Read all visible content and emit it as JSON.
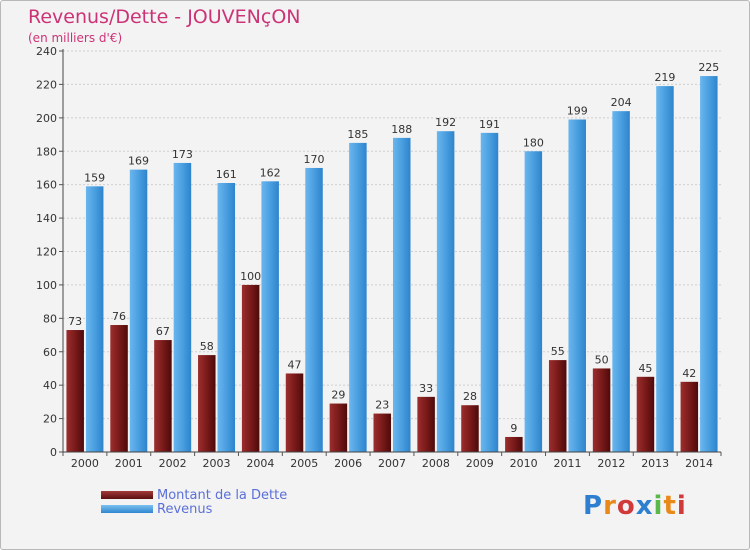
{
  "title": "Revenus/Dette - JOUVENçON",
  "subtitle": "(en milliers d'€)",
  "colors": {
    "debt": "#7a1a1a",
    "revenue": "#4a9fe0",
    "title": "#cc3377"
  },
  "legend": [
    {
      "label": "Montant de la Dette",
      "color": "#7a1a1a"
    },
    {
      "label": "Revenus",
      "color": "#4a9fe0"
    }
  ],
  "logo": {
    "text": "Proxiti",
    "colors": [
      "#2f7fd0",
      "#e8891a",
      "#d13a3a",
      "#2f7fd0",
      "#5ab84a",
      "#e8891a",
      "#d13a3a"
    ]
  },
  "chart_data": {
    "type": "bar",
    "title": "Revenus/Dette - JOUVENçON",
    "subtitle": "(en milliers d'€)",
    "categories": [
      "2000",
      "2001",
      "2002",
      "2003",
      "2004",
      "2005",
      "2006",
      "2007",
      "2008",
      "2009",
      "2010",
      "2011",
      "2012",
      "2013",
      "2014"
    ],
    "series": [
      {
        "name": "Montant de la Dette",
        "values": [
          73,
          76,
          67,
          58,
          100,
          47,
          29,
          23,
          33,
          28,
          9,
          55,
          50,
          45,
          42
        ]
      },
      {
        "name": "Revenus",
        "values": [
          159,
          169,
          173,
          161,
          162,
          170,
          185,
          188,
          192,
          191,
          180,
          199,
          204,
          219,
          225
        ]
      }
    ],
    "ylim": [
      0,
      240
    ],
    "yticks": [
      0,
      20,
      40,
      60,
      80,
      100,
      120,
      140,
      160,
      180,
      200,
      220,
      240
    ],
    "grid": true,
    "legend_position": "bottom-left"
  }
}
